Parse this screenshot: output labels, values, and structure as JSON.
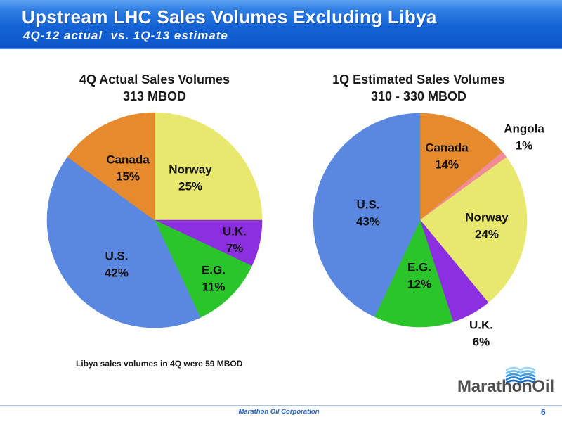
{
  "header": {
    "title": "Upstream LHC Sales Volumes Excluding Libya",
    "subtitle": "4Q-12 actual  vs. 1Q-13 estimate"
  },
  "chart_data": [
    {
      "type": "pie",
      "title": "4Q Actual Sales Volumes",
      "subtitle": "313 MBOD",
      "categories": [
        "Norway",
        "U.K.",
        "E.G.",
        "U.S.",
        "Canada"
      ],
      "values": [
        25,
        7,
        11,
        42,
        15
      ],
      "unit": "%",
      "colors": [
        "#E8E86E",
        "#8B2FE0",
        "#2BC52B",
        "#5A88E0",
        "#E68A2E"
      ]
    },
    {
      "type": "pie",
      "title": "1Q Estimated Sales Volumes",
      "subtitle": "310 - 330 MBOD",
      "categories": [
        "Canada",
        "Angola",
        "Norway",
        "U.K.",
        "E.G.",
        "U.S."
      ],
      "values": [
        14,
        1,
        24,
        6,
        12,
        43
      ],
      "unit": "%",
      "colors": [
        "#E68A2E",
        "#F28B98",
        "#E8E86E",
        "#8B2FE0",
        "#2BC52B",
        "#5A88E0"
      ]
    }
  ],
  "footnote": "Libya sales volumes in 4Q were 59 MBOD",
  "logo": {
    "wordmark": "MarathonOil"
  },
  "footer": {
    "company": "Marathon Oil Corporation",
    "page_number": "6"
  },
  "colors": {
    "header_blue": "#1463D6",
    "footer_blue": "#1F5FC4",
    "label_text": "#141414"
  }
}
